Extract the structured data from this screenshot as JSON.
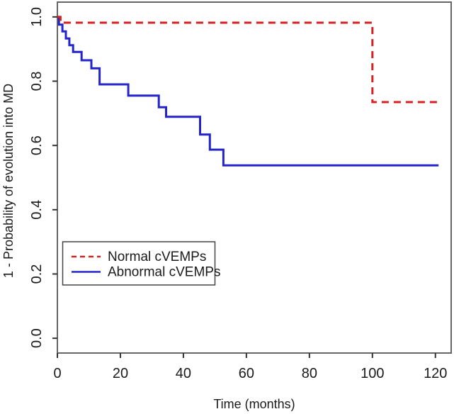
{
  "figure": {
    "background": "#ffffff",
    "plot_border_color": "#666666",
    "tick_color": "#333333",
    "text_color": "#1a1a1a",
    "legend_border_color": "#444444"
  },
  "chart_data": {
    "type": "line",
    "subtype": "kaplan-meier-step",
    "title": "",
    "xlabel": "Time (months)",
    "ylabel": "1 - Probability of evolution into MD",
    "x_ticks": [
      0,
      20,
      40,
      60,
      80,
      100,
      120
    ],
    "x_tick_labels": [
      "0",
      "20",
      "40",
      "60",
      "80",
      "100",
      "120"
    ],
    "y_ticks": [
      0.0,
      0.2,
      0.4,
      0.6,
      0.8,
      1.0
    ],
    "y_tick_labels": [
      "0.0",
      "0.2",
      "0.4",
      "0.6",
      "0.8",
      "1.0"
    ],
    "xlim": [
      0,
      125
    ],
    "ylim": [
      -0.046,
      1.046
    ],
    "grid": false,
    "legend_position": "left-middle",
    "series": [
      {
        "name": "Normal cVEMPs",
        "color": "#d42222",
        "style": "dashed",
        "line_width": 3,
        "start": [
          0,
          1.0
        ],
        "steps": [
          [
            1,
            0.982
          ],
          [
            100,
            0.735
          ]
        ],
        "end_time": 120.5
      },
      {
        "name": "Abnormal cVEMPs",
        "color": "#2424cc",
        "style": "solid",
        "line_width": 3,
        "start": [
          0,
          1.0
        ],
        "steps": [
          [
            0.5,
            0.976
          ],
          [
            1.6,
            0.955
          ],
          [
            2.7,
            0.933
          ],
          [
            3.8,
            0.912
          ],
          [
            5.0,
            0.891
          ],
          [
            7.7,
            0.865
          ],
          [
            10.8,
            0.84
          ],
          [
            13.4,
            0.79
          ],
          [
            22.5,
            0.755
          ],
          [
            32.2,
            0.719
          ],
          [
            34.5,
            0.689
          ],
          [
            45.3,
            0.634
          ],
          [
            48.4,
            0.587
          ],
          [
            52.7,
            0.538
          ]
        ],
        "end_time": 121
      }
    ]
  }
}
